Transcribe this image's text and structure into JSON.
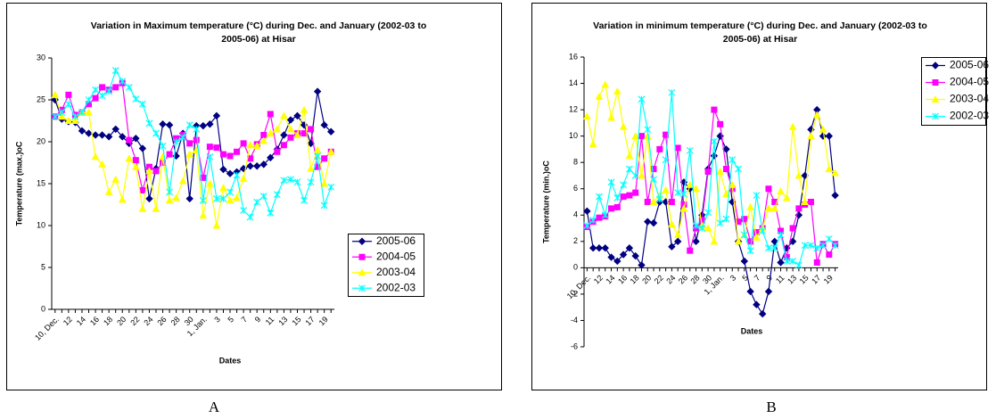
{
  "chart_data": [
    {
      "type": "line",
      "label": "A",
      "title": "Variation in Maximum temperature (°C) during Dec. and January (2002-03 to 2005-06) at Hisar",
      "y_label": "Temperature (max.)oC",
      "x_label": "Dates",
      "categories": [
        "10, Dec.",
        null,
        "12",
        null,
        "14",
        null,
        "16",
        null,
        "18",
        null,
        "20",
        null,
        "22",
        null,
        "24",
        null,
        "26",
        null,
        "28",
        null,
        "30",
        null,
        "1, Jan.",
        null,
        "3",
        null,
        "5",
        null,
        "7",
        null,
        "9",
        null,
        "11",
        null,
        "13",
        null,
        "15",
        null,
        "17",
        null,
        "19",
        null
      ],
      "ylim": [
        0,
        30
      ],
      "yticks": [
        0,
        5,
        10,
        15,
        20,
        25,
        30
      ],
      "grid": false,
      "legend": "lower right",
      "series": [
        {
          "name": "2005-06",
          "color": "#000080",
          "marker": "diamond",
          "values": [
            25,
            22.7,
            22.4,
            22.3,
            21.3,
            21,
            20.8,
            20.8,
            20.6,
            21.5,
            20.6,
            19.8,
            20.4,
            19.2,
            13.2,
            16.8,
            22.1,
            22,
            18.3,
            21,
            13.2,
            21.9,
            21.9,
            22.1,
            23.1,
            16.7,
            16.2,
            16.4,
            16.8,
            17.1,
            17.1,
            17.3,
            18.1,
            19.1,
            20.8,
            22.6,
            23.1,
            22,
            19.8,
            26,
            22,
            21.2
          ]
        },
        {
          "name": "2004-05",
          "color": "#ff00ff",
          "marker": "square",
          "values": [
            23,
            23.8,
            25.6,
            23.2,
            23.5,
            24.5,
            25.2,
            26.5,
            26.2,
            26.5,
            27,
            20.2,
            17.8,
            14.2,
            17,
            16.5,
            17.5,
            18.5,
            20.4,
            20.8,
            19.8,
            20.2,
            15.7,
            19.4,
            19.3,
            18.5,
            18.3,
            18.8,
            19.8,
            18,
            19.7,
            20.8,
            23.3,
            18.8,
            19.6,
            20.5,
            21,
            21,
            21.5,
            17,
            18,
            18.8
          ]
        },
        {
          "name": "2003-04",
          "color": "#ffff00",
          "marker": "triangle",
          "values": [
            25.6,
            23,
            22.5,
            22.5,
            23.5,
            23.5,
            18.2,
            17.3,
            14,
            15.5,
            13.1,
            18,
            17,
            12,
            16.5,
            12,
            18.2,
            13,
            13.3,
            15.3,
            18.5,
            19,
            11.2,
            15,
            10,
            14.5,
            13,
            13.3,
            15.6,
            19.6,
            19.5,
            20.1,
            21,
            21.5,
            23.1,
            21.5,
            20.8,
            23.8,
            16.8,
            19,
            15,
            18.8
          ]
        },
        {
          "name": "2002-03",
          "color": "#00ffff",
          "marker": "star",
          "values": [
            23,
            23.5,
            24.5,
            23,
            23.5,
            25,
            26.2,
            25.5,
            26,
            28.5,
            27.2,
            26.5,
            25.1,
            24.5,
            22.2,
            21,
            19.5,
            14,
            20,
            20.5,
            22,
            21.5,
            13,
            18.2,
            13.2,
            13.2,
            14,
            16,
            11.8,
            11,
            12.8,
            13.5,
            11.5,
            13.7,
            15.4,
            15.5,
            15.2,
            13,
            15.2,
            18.3,
            12.4,
            14.6
          ]
        }
      ]
    },
    {
      "type": "line",
      "label": "B",
      "title": "Variation in minimum temperature (°C) during Dec. and January (2002-03 to 2005-06) at Hisar",
      "y_label": "Temperature (min.)oC",
      "x_label": "Dates",
      "categories": [
        "10, Dec.",
        null,
        "12",
        null,
        "14",
        null,
        "16",
        null,
        "18",
        null,
        "20",
        null,
        "22",
        null,
        "24",
        null,
        "26",
        null,
        "28",
        null,
        "30",
        null,
        "1, Jan.",
        null,
        "3",
        null,
        "5",
        null,
        "7",
        null,
        "9",
        null,
        "11",
        null,
        "13",
        null,
        "15",
        null,
        "17",
        null,
        "19",
        null
      ],
      "ylim": [
        -6,
        16
      ],
      "yticks": [
        -6,
        -4,
        -2,
        0,
        2,
        4,
        6,
        8,
        10,
        12,
        14,
        16
      ],
      "grid": false,
      "legend": "upper right",
      "series": [
        {
          "name": "2005-06",
          "color": "#000080",
          "marker": "diamond",
          "values": [
            4.3,
            1.5,
            1.5,
            1.5,
            0.8,
            0.5,
            1,
            1.5,
            0.9,
            0.2,
            3.5,
            3.4,
            5,
            5,
            1.6,
            2,
            6.5,
            6,
            2,
            4,
            7.5,
            8.5,
            10,
            9,
            5,
            2,
            0.5,
            -1.8,
            -2.8,
            -3.5,
            -1.8,
            2,
            0.4,
            1.5,
            2,
            4,
            7,
            10.5,
            12,
            10,
            10,
            5.5
          ]
        },
        {
          "name": "2004-05",
          "color": "#ff00ff",
          "marker": "square",
          "values": [
            3.1,
            3.5,
            3.8,
            3.9,
            4.5,
            4.6,
            5.4,
            5.5,
            5.7,
            10,
            5,
            7.5,
            9,
            10.1,
            5,
            9.1,
            4.8,
            1.3,
            3,
            3.6,
            7.3,
            12,
            10.9,
            7.5,
            6,
            3.5,
            3.7,
            2,
            2.7,
            3,
            6,
            5,
            2.8,
            0.8,
            3,
            4.5,
            4.8,
            5,
            0.4,
            1.8,
            1,
            1.8
          ]
        },
        {
          "name": "2003-04",
          "color": "#ffff00",
          "marker": "triangle",
          "values": [
            11.5,
            9.4,
            13,
            13.9,
            11.4,
            13.4,
            10.7,
            8.5,
            10,
            7,
            10,
            5,
            5.5,
            5.9,
            3.3,
            2.5,
            4.5,
            6.3,
            6,
            3.2,
            3,
            2,
            7.3,
            5.6,
            6.3,
            2,
            2.5,
            4.6,
            2.3,
            3,
            4.5,
            4.5,
            5.8,
            5.3,
            10.7,
            7,
            5,
            10,
            11.6,
            10.5,
            7.5,
            7.2
          ]
        },
        {
          "name": "2002-03",
          "color": "#00ffff",
          "marker": "star",
          "values": [
            3.2,
            3.6,
            5.4,
            4,
            6.5,
            5.3,
            6.3,
            7.5,
            7,
            12.8,
            10.5,
            6.7,
            5.2,
            8.2,
            13.3,
            5.7,
            5.6,
            8.9,
            3.2,
            3,
            4.2,
            9.6,
            3.4,
            3.7,
            8.2,
            7.5,
            2.5,
            1.3,
            5.5,
            2.8,
            1.5,
            1.5,
            2.5,
            0.5,
            0.5,
            0.2,
            1.7,
            1.7,
            1.5,
            1.7,
            2.2,
            1.7
          ]
        }
      ]
    }
  ]
}
